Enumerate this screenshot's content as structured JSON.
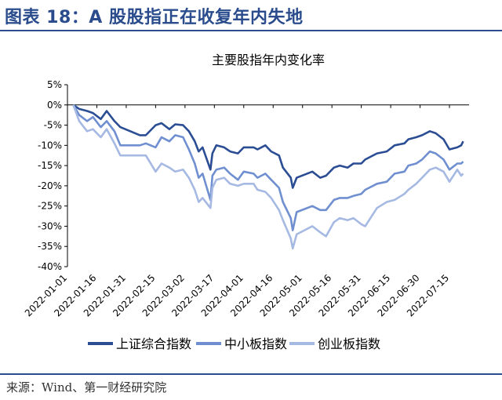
{
  "page": {
    "figure_title": "图表 18：A 股股指正在收复年内失地",
    "source": "来源：Wind、第一财经研究院"
  },
  "colors": {
    "title": "#2a4c8c",
    "series": [
      "#2b4d93",
      "#6f8fd0",
      "#a6b9e3"
    ],
    "axis": "#000000"
  },
  "chart_data": {
    "type": "line",
    "title": "主要股指年内变化率",
    "xlabel": "",
    "ylabel": "",
    "ylim": [
      -40,
      5
    ],
    "yticks": [
      5,
      0,
      -5,
      -10,
      -15,
      -20,
      -25,
      -30,
      -35,
      -40
    ],
    "ytick_labels": [
      "5%",
      "0%",
      "-5%",
      "-10%",
      "-15%",
      "-20%",
      "-25%",
      "-30%",
      "-35%",
      "-40%"
    ],
    "xlim": [
      "2022-01-01",
      "2022-07-25"
    ],
    "xtick_labels": [
      "2022-01-01",
      "2022-01-16",
      "2022-01-31",
      "2022-02-15",
      "2022-03-02",
      "2022-03-17",
      "2022-04-01",
      "2022-04-16",
      "2022-05-01",
      "2022-05-16",
      "2022-05-31",
      "2022-06-15",
      "2022-06-30",
      "2022-07-15"
    ],
    "legend": "bottom",
    "series": [
      {
        "name": "上证综合指数",
        "points": [
          [
            "2022-01-04",
            0.0
          ],
          [
            "2022-01-07",
            -1.0
          ],
          [
            "2022-01-11",
            -1.5
          ],
          [
            "2022-01-14",
            -2.0
          ],
          [
            "2022-01-18",
            -3.5
          ],
          [
            "2022-01-21",
            -1.5
          ],
          [
            "2022-01-25",
            -4.0
          ],
          [
            "2022-01-28",
            -5.5
          ],
          [
            "2022-02-07",
            -7.5
          ],
          [
            "2022-02-10",
            -7.5
          ],
          [
            "2022-02-15",
            -5.0
          ],
          [
            "2022-02-18",
            -4.5
          ],
          [
            "2022-02-22",
            -6.0
          ],
          [
            "2022-02-25",
            -4.8
          ],
          [
            "2022-03-01",
            -5.0
          ],
          [
            "2022-03-04",
            -6.5
          ],
          [
            "2022-03-07",
            -9.0
          ],
          [
            "2022-03-09",
            -11.5
          ],
          [
            "2022-03-11",
            -10.5
          ],
          [
            "2022-03-15",
            -16.0
          ],
          [
            "2022-03-16",
            -12.0
          ],
          [
            "2022-03-18",
            -10.0
          ],
          [
            "2022-03-22",
            -10.5
          ],
          [
            "2022-03-25",
            -11.5
          ],
          [
            "2022-03-29",
            -12.0
          ],
          [
            "2022-04-01",
            -10.5
          ],
          [
            "2022-04-06",
            -10.5
          ],
          [
            "2022-04-08",
            -11.0
          ],
          [
            "2022-04-12",
            -10.0
          ],
          [
            "2022-04-15",
            -11.5
          ],
          [
            "2022-04-19",
            -12.5
          ],
          [
            "2022-04-21",
            -15.5
          ],
          [
            "2022-04-25",
            -18.0
          ],
          [
            "2022-04-26",
            -20.5
          ],
          [
            "2022-04-28",
            -18.0
          ],
          [
            "2022-05-06",
            -16.5
          ],
          [
            "2022-05-10",
            -18.0
          ],
          [
            "2022-05-13",
            -17.5
          ],
          [
            "2022-05-17",
            -15.5
          ],
          [
            "2022-05-20",
            -15.0
          ],
          [
            "2022-05-24",
            -15.5
          ],
          [
            "2022-05-27",
            -14.5
          ],
          [
            "2022-05-31",
            -14.5
          ],
          [
            "2022-06-02",
            -13.5
          ],
          [
            "2022-06-08",
            -12.0
          ],
          [
            "2022-06-13",
            -11.5
          ],
          [
            "2022-06-17",
            -10.0
          ],
          [
            "2022-06-22",
            -9.5
          ],
          [
            "2022-06-24",
            -8.5
          ],
          [
            "2022-06-28",
            -8.0
          ],
          [
            "2022-07-01",
            -7.5
          ],
          [
            "2022-07-05",
            -6.5
          ],
          [
            "2022-07-08",
            -7.0
          ],
          [
            "2022-07-12",
            -8.5
          ],
          [
            "2022-07-15",
            -11.0
          ],
          [
            "2022-07-19",
            -10.5
          ],
          [
            "2022-07-21",
            -10.0
          ],
          [
            "2022-07-22",
            -9.0
          ]
        ]
      },
      {
        "name": "中小板指数",
        "points": [
          [
            "2022-01-04",
            0.0
          ],
          [
            "2022-01-07",
            -2.5
          ],
          [
            "2022-01-11",
            -4.0
          ],
          [
            "2022-01-14",
            -3.0
          ],
          [
            "2022-01-18",
            -5.5
          ],
          [
            "2022-01-21",
            -4.0
          ],
          [
            "2022-01-25",
            -6.5
          ],
          [
            "2022-01-28",
            -10.0
          ],
          [
            "2022-02-07",
            -10.0
          ],
          [
            "2022-02-10",
            -9.5
          ],
          [
            "2022-02-15",
            -10.5
          ],
          [
            "2022-02-18",
            -8.0
          ],
          [
            "2022-02-22",
            -9.0
          ],
          [
            "2022-02-25",
            -7.5
          ],
          [
            "2022-03-01",
            -8.0
          ],
          [
            "2022-03-04",
            -11.0
          ],
          [
            "2022-03-07",
            -14.5
          ],
          [
            "2022-03-09",
            -18.0
          ],
          [
            "2022-03-11",
            -17.0
          ],
          [
            "2022-03-15",
            -23.5
          ],
          [
            "2022-03-16",
            -17.5
          ],
          [
            "2022-03-18",
            -16.0
          ],
          [
            "2022-03-22",
            -15.5
          ],
          [
            "2022-03-25",
            -17.0
          ],
          [
            "2022-03-29",
            -18.5
          ],
          [
            "2022-04-01",
            -16.5
          ],
          [
            "2022-04-06",
            -17.0
          ],
          [
            "2022-04-08",
            -18.0
          ],
          [
            "2022-04-12",
            -17.0
          ],
          [
            "2022-04-15",
            -18.5
          ],
          [
            "2022-04-19",
            -20.5
          ],
          [
            "2022-04-21",
            -24.0
          ],
          [
            "2022-04-25",
            -28.0
          ],
          [
            "2022-04-26",
            -31.0
          ],
          [
            "2022-04-28",
            -26.5
          ],
          [
            "2022-05-06",
            -25.0
          ],
          [
            "2022-05-10",
            -26.0
          ],
          [
            "2022-05-13",
            -26.0
          ],
          [
            "2022-05-17",
            -23.5
          ],
          [
            "2022-05-20",
            -23.0
          ],
          [
            "2022-05-24",
            -23.0
          ],
          [
            "2022-05-27",
            -22.5
          ],
          [
            "2022-05-31",
            -22.0
          ],
          [
            "2022-06-02",
            -21.0
          ],
          [
            "2022-06-08",
            -19.5
          ],
          [
            "2022-06-13",
            -19.0
          ],
          [
            "2022-06-17",
            -17.0
          ],
          [
            "2022-06-22",
            -16.5
          ],
          [
            "2022-06-24",
            -15.0
          ],
          [
            "2022-06-28",
            -14.5
          ],
          [
            "2022-07-01",
            -13.5
          ],
          [
            "2022-07-05",
            -11.5
          ],
          [
            "2022-07-08",
            -12.0
          ],
          [
            "2022-07-12",
            -13.5
          ],
          [
            "2022-07-15",
            -16.0
          ],
          [
            "2022-07-19",
            -14.5
          ],
          [
            "2022-07-21",
            -14.5
          ],
          [
            "2022-07-22",
            -14.0
          ]
        ]
      },
      {
        "name": "创业板指数",
        "points": [
          [
            "2022-01-04",
            0.0
          ],
          [
            "2022-01-07",
            -4.0
          ],
          [
            "2022-01-11",
            -6.5
          ],
          [
            "2022-01-14",
            -6.0
          ],
          [
            "2022-01-18",
            -8.0
          ],
          [
            "2022-01-21",
            -6.0
          ],
          [
            "2022-01-25",
            -9.5
          ],
          [
            "2022-01-28",
            -12.5
          ],
          [
            "2022-02-07",
            -12.5
          ],
          [
            "2022-02-10",
            -12.5
          ],
          [
            "2022-02-15",
            -16.5
          ],
          [
            "2022-02-18",
            -14.5
          ],
          [
            "2022-02-22",
            -15.5
          ],
          [
            "2022-02-25",
            -16.5
          ],
          [
            "2022-03-01",
            -16.0
          ],
          [
            "2022-03-04",
            -18.0
          ],
          [
            "2022-03-07",
            -21.0
          ],
          [
            "2022-03-09",
            -24.0
          ],
          [
            "2022-03-11",
            -23.0
          ],
          [
            "2022-03-15",
            -25.5
          ],
          [
            "2022-03-16",
            -20.5
          ],
          [
            "2022-03-18",
            -18.5
          ],
          [
            "2022-03-22",
            -18.0
          ],
          [
            "2022-03-25",
            -19.5
          ],
          [
            "2022-03-29",
            -20.0
          ],
          [
            "2022-04-01",
            -19.5
          ],
          [
            "2022-04-06",
            -19.5
          ],
          [
            "2022-04-08",
            -21.0
          ],
          [
            "2022-04-12",
            -21.5
          ],
          [
            "2022-04-15",
            -23.0
          ],
          [
            "2022-04-19",
            -26.0
          ],
          [
            "2022-04-21",
            -28.5
          ],
          [
            "2022-04-25",
            -33.0
          ],
          [
            "2022-04-26",
            -35.5
          ],
          [
            "2022-04-28",
            -32.0
          ],
          [
            "2022-05-06",
            -30.0
          ],
          [
            "2022-05-10",
            -31.5
          ],
          [
            "2022-05-13",
            -32.5
          ],
          [
            "2022-05-17",
            -29.0
          ],
          [
            "2022-05-20",
            -28.0
          ],
          [
            "2022-05-24",
            -28.5
          ],
          [
            "2022-05-27",
            -28.0
          ],
          [
            "2022-05-31",
            -29.5
          ],
          [
            "2022-06-02",
            -30.0
          ],
          [
            "2022-06-08",
            -25.5
          ],
          [
            "2022-06-13",
            -24.0
          ],
          [
            "2022-06-17",
            -23.5
          ],
          [
            "2022-06-22",
            -22.0
          ],
          [
            "2022-06-24",
            -21.0
          ],
          [
            "2022-06-28",
            -19.5
          ],
          [
            "2022-07-01",
            -18.0
          ],
          [
            "2022-07-05",
            -16.0
          ],
          [
            "2022-07-08",
            -15.5
          ],
          [
            "2022-07-12",
            -16.5
          ],
          [
            "2022-07-15",
            -19.0
          ],
          [
            "2022-07-19",
            -16.0
          ],
          [
            "2022-07-21",
            -17.5
          ],
          [
            "2022-07-22",
            -17.0
          ]
        ]
      }
    ]
  }
}
